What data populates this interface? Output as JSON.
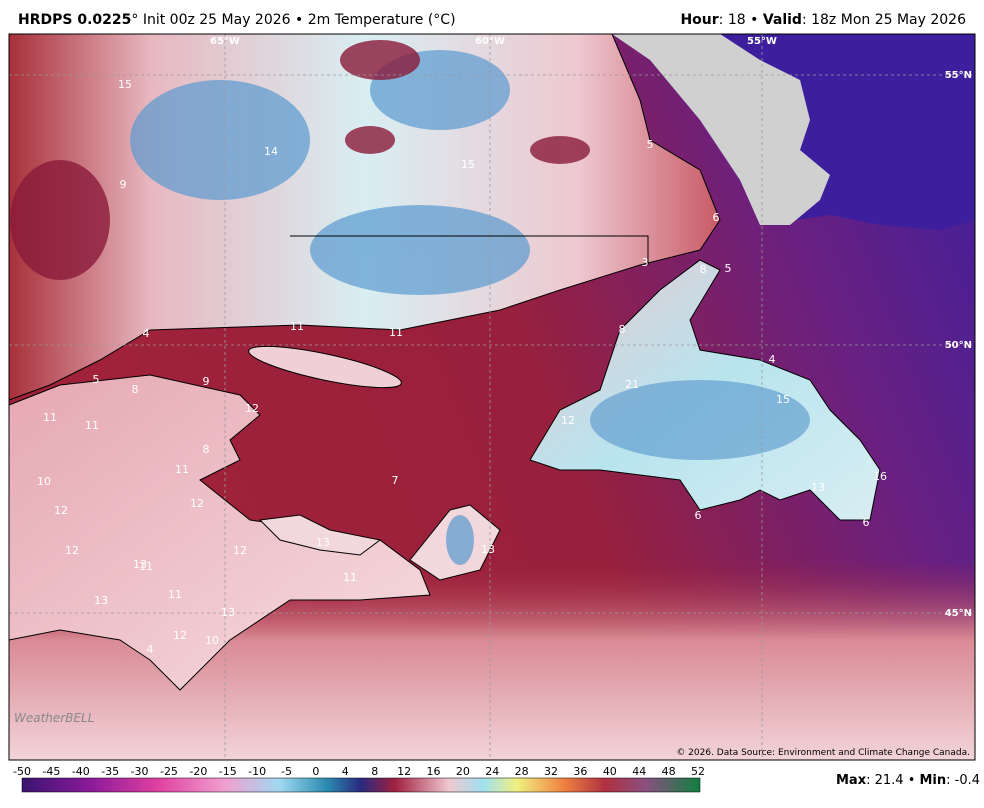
{
  "header": {
    "model": "HRDPS 0.0225",
    "run": "° Init 00z 25 May 2026 • 2m Temperature (°C)",
    "hour_label": "Hour",
    "hour_value": ": 18 • ",
    "valid_label": "Valid",
    "valid_value": ": 18z Mon 25 May 2026"
  },
  "map": {
    "lon_labels": [
      "65°W",
      "60°W",
      "55°W"
    ],
    "lat_labels": [
      "55°N",
      "50°N",
      "45°N"
    ],
    "contour_labels": [
      "15",
      "14",
      "9",
      "15",
      "5",
      "6",
      "8",
      "5",
      "3",
      "4",
      "11",
      "11",
      "8",
      "5",
      "8",
      "9",
      "11",
      "11",
      "12",
      "4",
      "21",
      "15",
      "12",
      "8",
      "11",
      "10",
      "7",
      "12",
      "12",
      "6",
      "16",
      "6",
      "13",
      "12",
      "12",
      "13",
      "13",
      "13",
      "11",
      "11",
      "11",
      "13",
      "13",
      "12",
      "10",
      "4"
    ],
    "copyright": "© 2026. Data Source: Environment and Climate Change Canada.",
    "logo": "WeatherBELL"
  },
  "colorbar": {
    "ticks": [
      -50,
      -45,
      -40,
      -35,
      -30,
      -25,
      -20,
      -15,
      -10,
      -5,
      0,
      4,
      8,
      12,
      16,
      20,
      24,
      28,
      32,
      36,
      40,
      44,
      48,
      52
    ]
  },
  "footer": {
    "max_label": "Max",
    "max_value": ": 21.4 • ",
    "min_label": "Min",
    "min_value": ": -0.4"
  }
}
